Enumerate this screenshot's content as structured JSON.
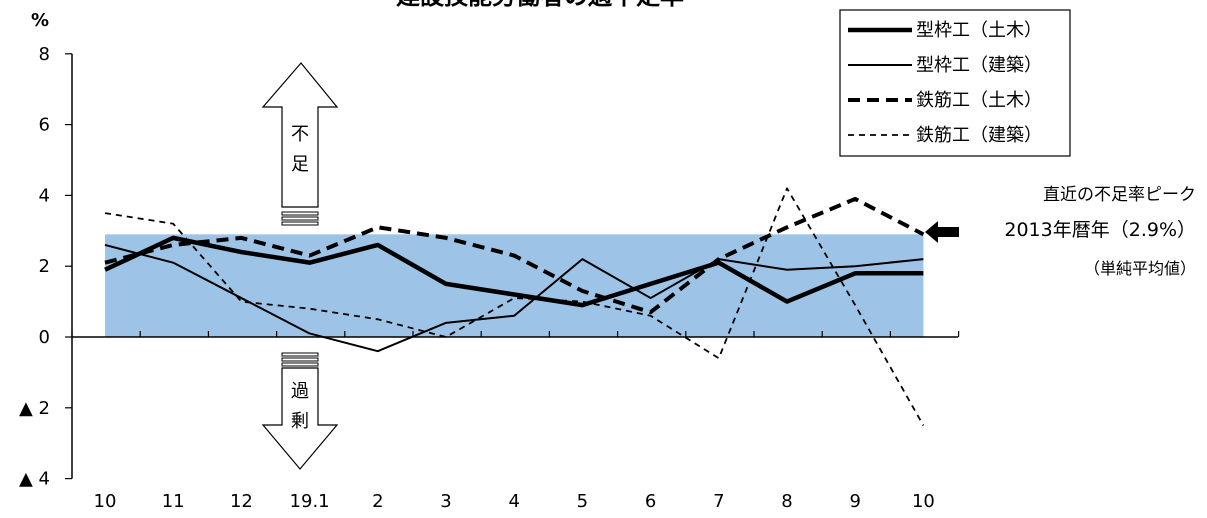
{
  "chart_data": {
    "type": "line",
    "title": "建設技能労働者の過不足率",
    "y_unit": "%",
    "x_ticks": [
      "10",
      "11",
      "12",
      "19.1",
      "2",
      "3",
      "4",
      "5",
      "6",
      "7",
      "8",
      "9",
      "10"
    ],
    "y_ticks": [
      {
        "value": 8,
        "label": "8"
      },
      {
        "value": 6,
        "label": "6"
      },
      {
        "value": 4,
        "label": "4"
      },
      {
        "value": 2,
        "label": "2"
      },
      {
        "value": 0,
        "label": "0"
      },
      {
        "value": -2,
        "label": "▲ 2"
      },
      {
        "value": -4,
        "label": "▲ 4"
      }
    ],
    "ylim": [
      -4,
      8
    ],
    "reference_band": {
      "from": 0,
      "to": 2.9,
      "color": "#9dc3e6"
    },
    "series": [
      {
        "name": "型枠工（土木）",
        "style": "thick-solid",
        "values": [
          1.9,
          2.8,
          2.4,
          2.1,
          2.6,
          1.5,
          1.2,
          0.9,
          1.5,
          2.1,
          1.0,
          1.8,
          1.8
        ]
      },
      {
        "name": "型枠工（建築）",
        "style": "thin-solid",
        "values": [
          2.6,
          2.1,
          1.1,
          0.1,
          -0.4,
          0.4,
          0.6,
          2.2,
          1.1,
          2.2,
          1.9,
          2.0,
          2.2
        ]
      },
      {
        "name": "鉄筋工（土木）",
        "style": "thick-dashed",
        "values": [
          2.1,
          2.6,
          2.8,
          2.3,
          3.1,
          2.8,
          2.3,
          1.3,
          0.7,
          2.2,
          3.1,
          3.9,
          2.9
        ]
      },
      {
        "name": "鉄筋工（建築）",
        "style": "thin-dashed",
        "values": [
          3.5,
          3.2,
          1.0,
          0.8,
          0.5,
          0.0,
          1.1,
          1.0,
          0.6,
          -0.6,
          4.2,
          0.9,
          -2.5
        ]
      }
    ],
    "annotations": {
      "shortage_label": [
        "不",
        "足"
      ],
      "surplus_label": [
        "過",
        "剰"
      ],
      "peak_line1": "直近の不足率ピーク",
      "peak_line2": "2013年暦年（2.9%）",
      "peak_line3": "（単純平均値）"
    },
    "legend_position": "top-right",
    "grid": false
  }
}
